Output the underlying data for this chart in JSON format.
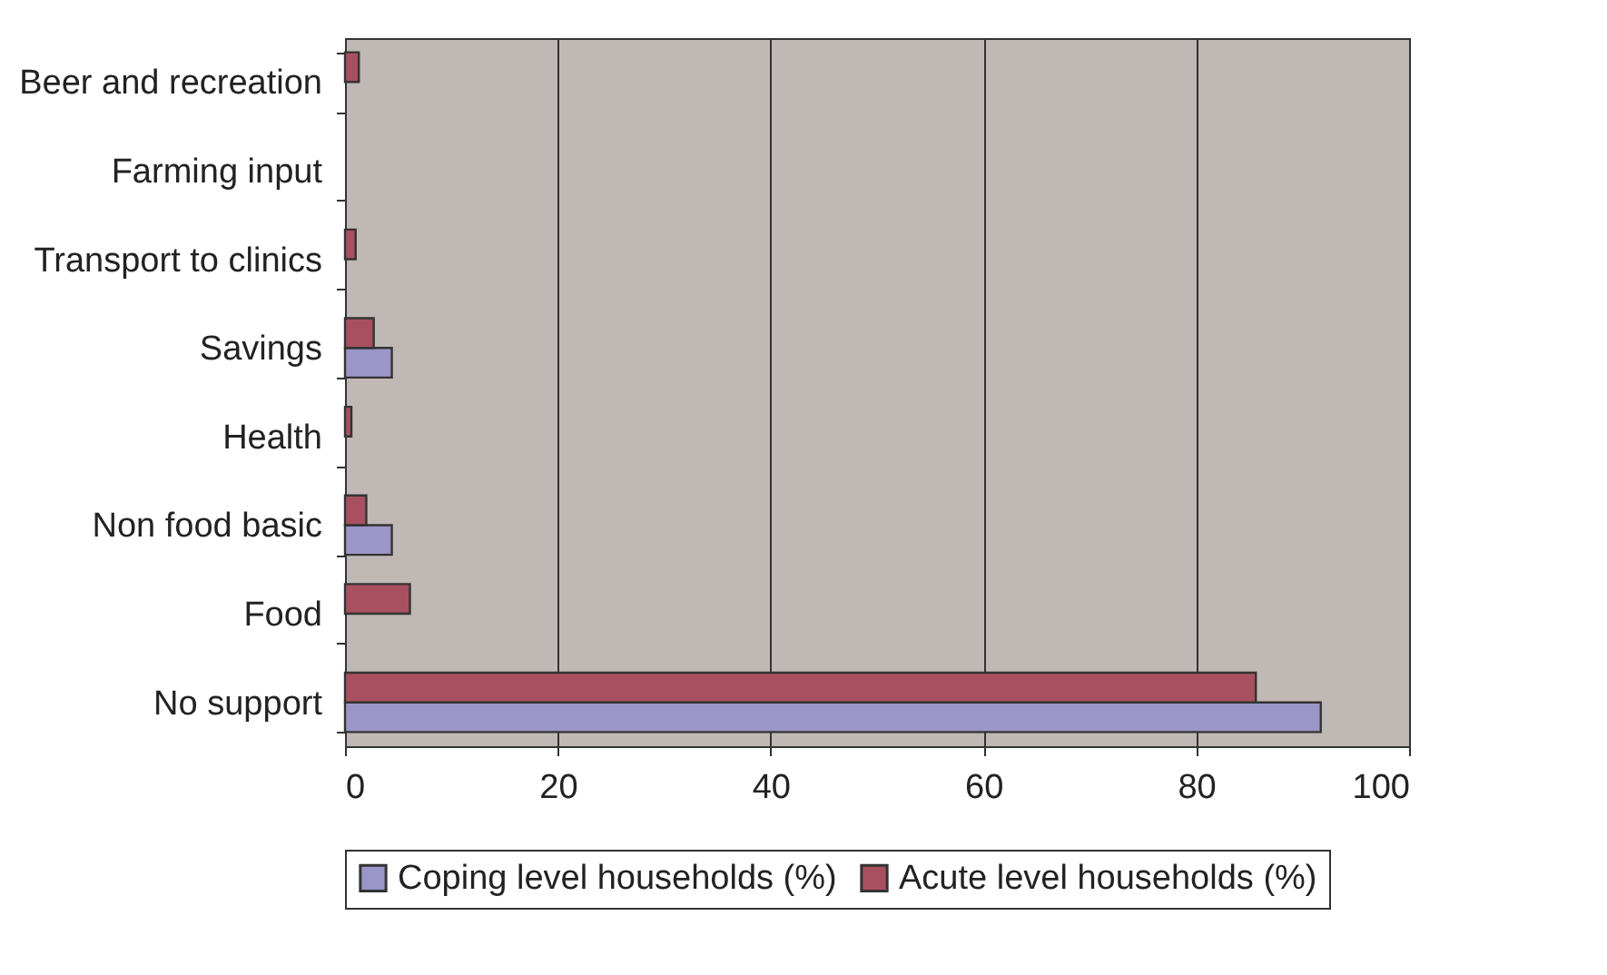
{
  "chart_data": {
    "type": "bar",
    "orientation": "horizontal",
    "categories": [
      "Beer and recreation",
      "Farming input",
      "Transport to clinics",
      "Savings",
      "Health",
      "Non food basic",
      "Food",
      "No support"
    ],
    "series": [
      {
        "name": "Coping level households (%)",
        "color": "#9a96c8",
        "values": [
          null,
          null,
          null,
          4.4,
          null,
          4.4,
          null,
          91.7
        ]
      },
      {
        "name": "Acute level households (%)",
        "color": "#a8505f",
        "values": [
          1.3,
          null,
          1.0,
          2.7,
          0.6,
          2.0,
          6.1,
          85.6
        ]
      }
    ],
    "xlim": [
      0,
      100
    ],
    "xticks": [
      0,
      20,
      40,
      60,
      80,
      100
    ],
    "grid": "x",
    "legend": "bottom"
  }
}
